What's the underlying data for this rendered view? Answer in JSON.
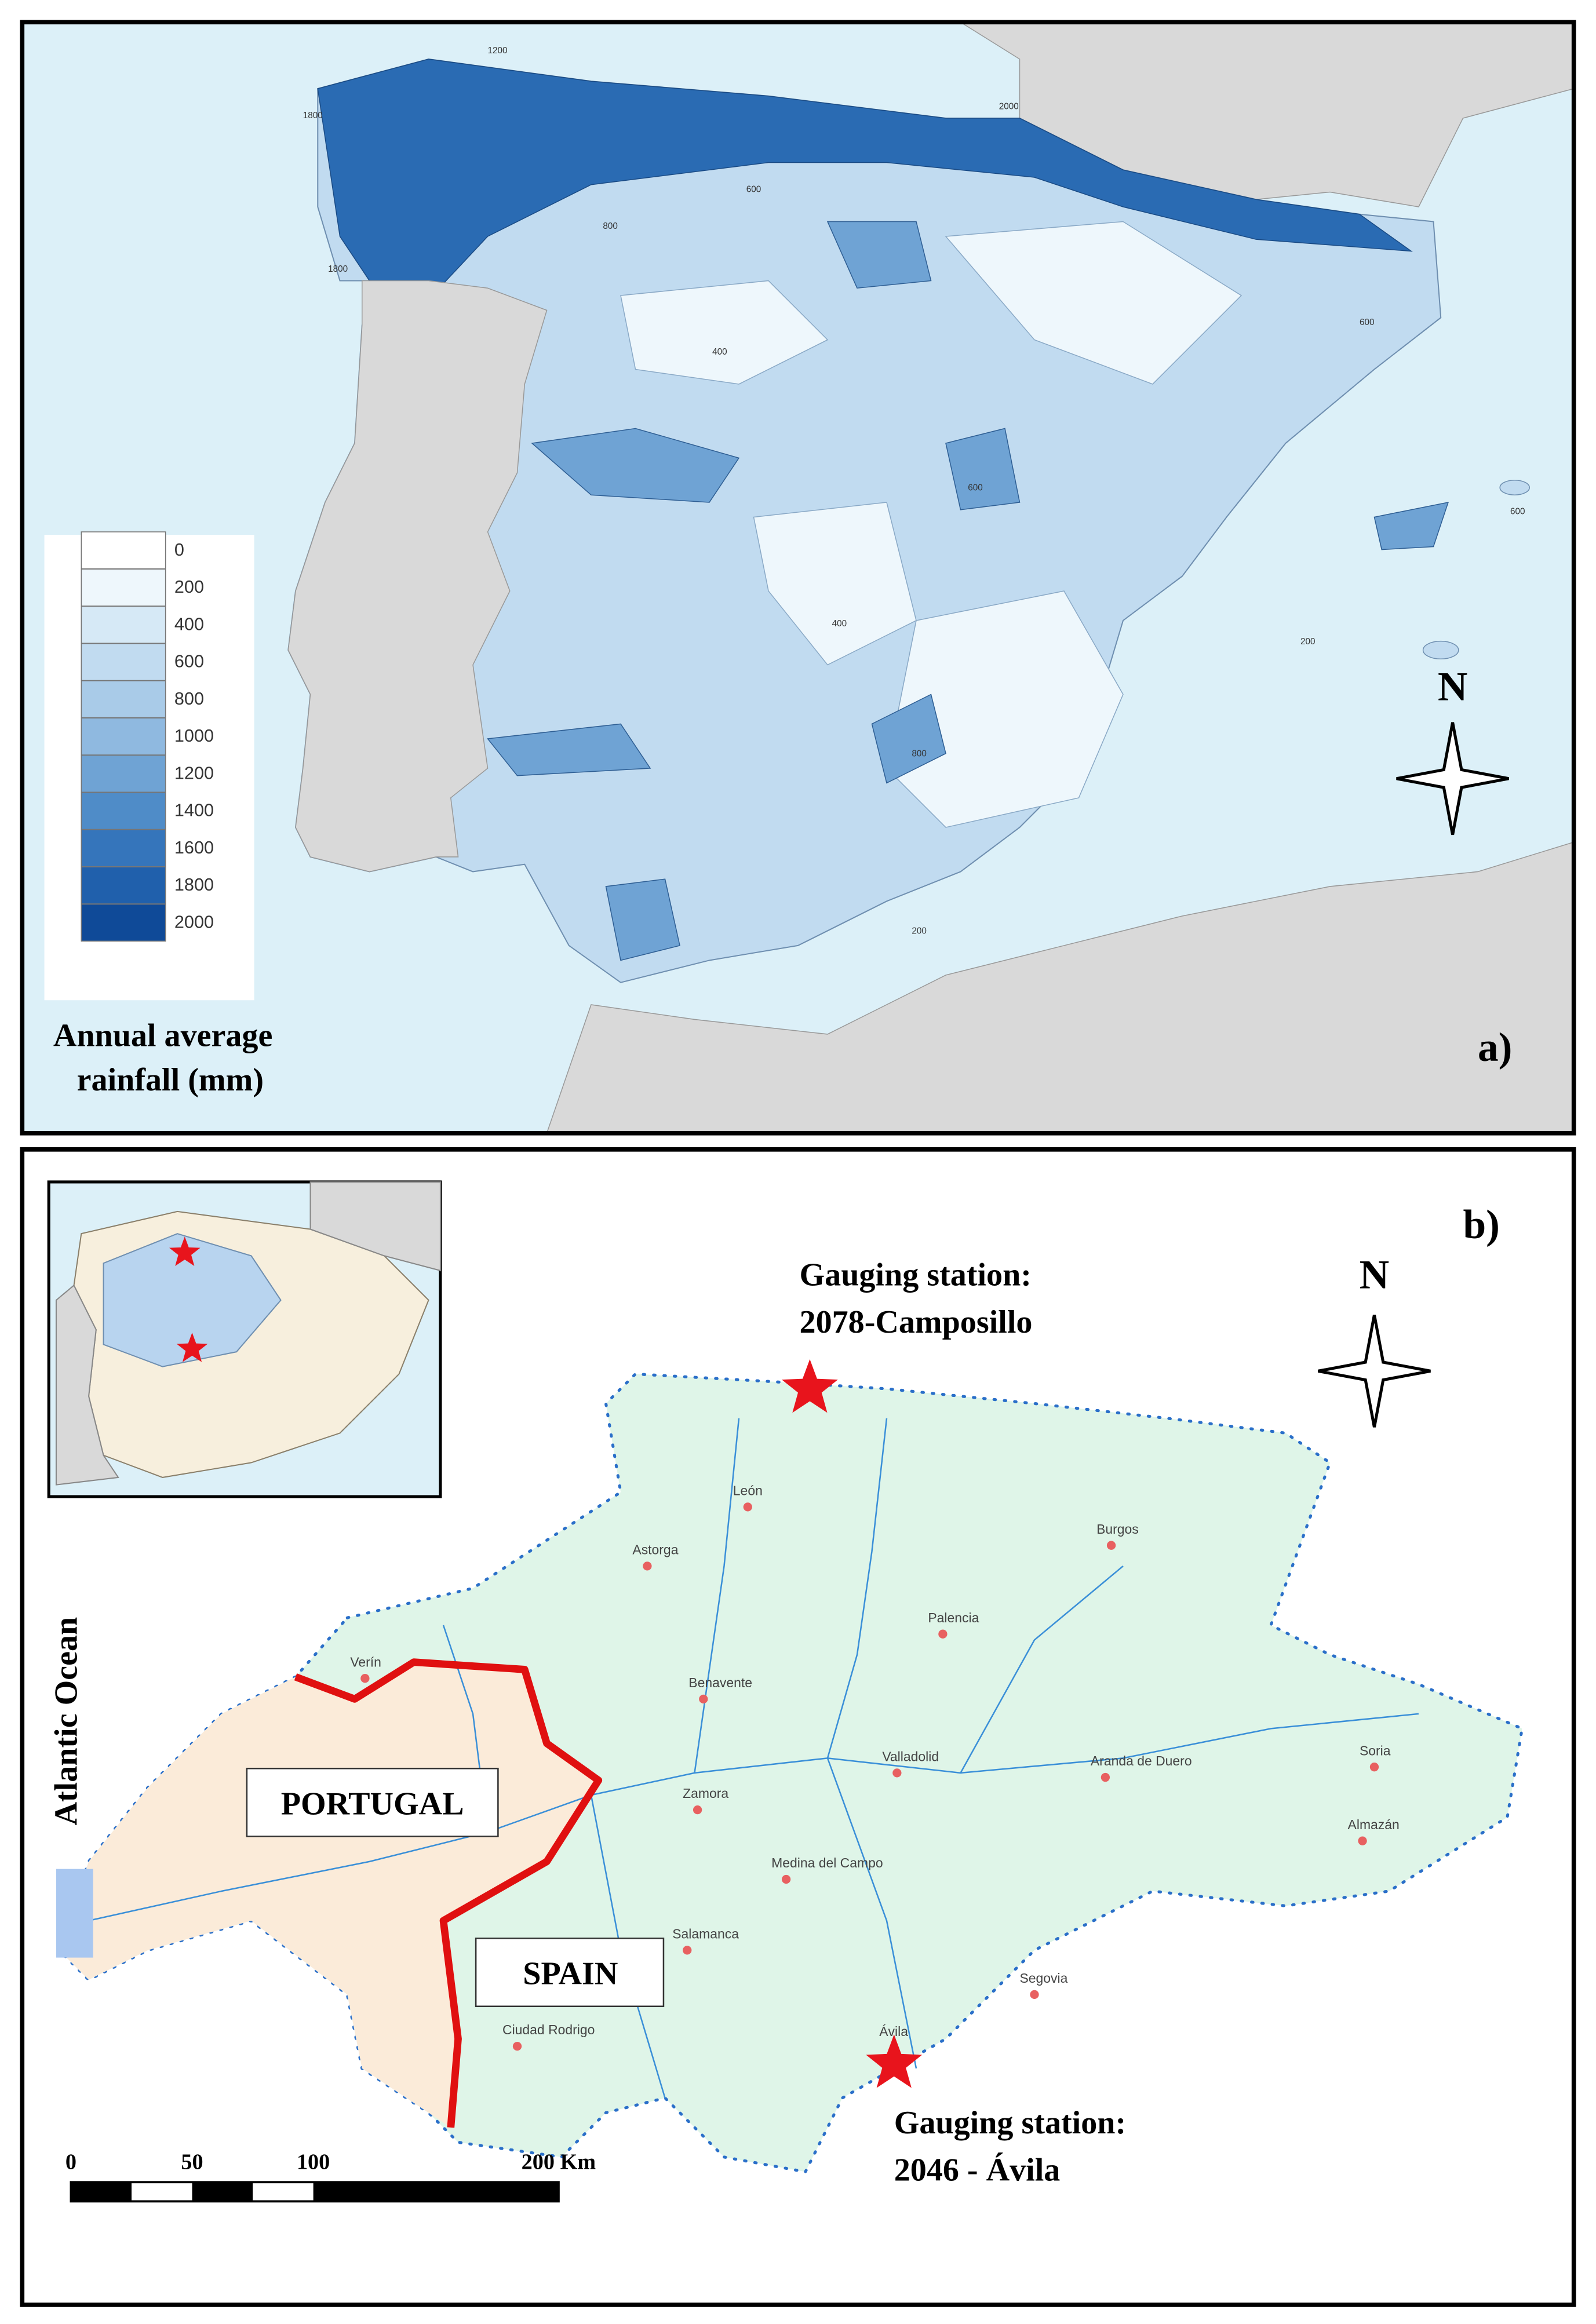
{
  "panel_a": {
    "label": "a)",
    "north": "N",
    "legend": {
      "title_lines": [
        "Annual average",
        "rainfall (mm)"
      ],
      "classes": [
        {
          "value": 0,
          "color": "#ffffff"
        },
        {
          "value": 200,
          "color": "#eef7fc"
        },
        {
          "value": 400,
          "color": "#d6e9f6"
        },
        {
          "value": 600,
          "color": "#c1dbf0"
        },
        {
          "value": 800,
          "color": "#a9cbe8"
        },
        {
          "value": 1000,
          "color": "#8fb9e0"
        },
        {
          "value": 1200,
          "color": "#6fa3d4"
        },
        {
          "value": 1400,
          "color": "#4f8cc8"
        },
        {
          "value": 1600,
          "color": "#3575bb"
        },
        {
          "value": 1800,
          "color": "#2060ac"
        },
        {
          "value": 2000,
          "color": "#0f4a98"
        }
      ]
    },
    "contour_labels": [
      "1200",
      "1800",
      "1800",
      "2000",
      "800",
      "600",
      "400",
      "600",
      "600",
      "600",
      "400",
      "200",
      "800",
      "200"
    ]
  },
  "panel_b": {
    "label": "b)",
    "north": "N",
    "station_north": {
      "lines": [
        "Gauging station:",
        "2078-Camposillo"
      ]
    },
    "station_south": {
      "lines": [
        "Gauging station:",
        "2046 - Ávila"
      ]
    },
    "countries": [
      "PORTUGAL",
      "SPAIN"
    ],
    "ocean": "Atlantic Ocean",
    "cities": [
      "León",
      "Astorga",
      "Burgos",
      "Palencia",
      "Benavente",
      "Verín",
      "Zamora",
      "Valladolid",
      "Aranda de Duero",
      "Soria",
      "Almazán",
      "Medina del Campo",
      "Salamanca",
      "Segovia",
      "Ávila",
      "Ciudad Rodrigo"
    ],
    "scale_bar": [
      "0",
      "50",
      "100",
      "200 Km"
    ]
  }
}
